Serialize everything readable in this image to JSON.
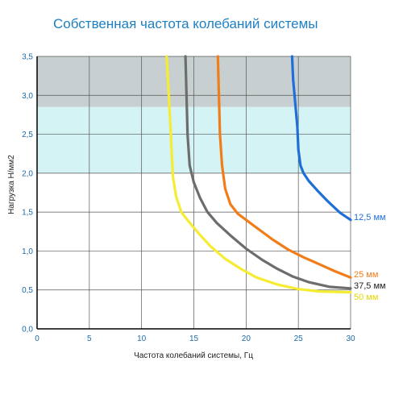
{
  "chart_data": {
    "type": "line",
    "title": "Собственная частота колебаний системы",
    "xlabel": "Частота колебаний системы, Гц",
    "ylabel": "Нагрузка Н/мм2",
    "xlim": [
      0,
      30
    ],
    "ylim": [
      0,
      3.5
    ],
    "x_ticks": [
      "0",
      "5",
      "10",
      "15",
      "20",
      "25",
      "30"
    ],
    "y_ticks": [
      "0,0",
      "0,5",
      "1,0",
      "1,5",
      "2,0",
      "2,5",
      "3,0",
      "3,5"
    ],
    "grid": true,
    "bands": [
      {
        "from": 2.85,
        "to": 3.5,
        "color": "#c8cfd1"
      },
      {
        "from": 2.0,
        "to": 2.85,
        "color": "#d4f3f4"
      }
    ],
    "series": [
      {
        "name": "12,5 мм",
        "color": "#1f6fd6",
        "x": [
          24.4,
          24.5,
          24.7,
          24.9,
          25.0,
          25.2,
          25.5,
          26.0,
          26.8,
          27.8,
          29.0,
          30.0
        ],
        "y": [
          3.5,
          3.2,
          2.9,
          2.6,
          2.3,
          2.1,
          2.0,
          1.9,
          1.78,
          1.64,
          1.49,
          1.4
        ]
      },
      {
        "name": "25 мм",
        "color": "#f07d1a",
        "x": [
          17.3,
          17.4,
          17.5,
          17.7,
          18.0,
          18.5,
          19.2,
          20.0,
          21.0,
          22.5,
          24.0,
          25.5,
          27.0,
          28.5,
          30.0
        ],
        "y": [
          3.5,
          3.0,
          2.5,
          2.1,
          1.8,
          1.6,
          1.48,
          1.4,
          1.3,
          1.15,
          1.02,
          0.92,
          0.83,
          0.74,
          0.66
        ]
      },
      {
        "name": "37,5 мм",
        "color": "#6d6d6d",
        "x": [
          14.2,
          14.3,
          14.4,
          14.6,
          15.0,
          15.6,
          16.3,
          17.2,
          18.5,
          20.0,
          21.5,
          23.0,
          24.5,
          26.0,
          28.0,
          30.0
        ],
        "y": [
          3.5,
          3.0,
          2.5,
          2.1,
          1.88,
          1.68,
          1.5,
          1.36,
          1.2,
          1.03,
          0.89,
          0.77,
          0.67,
          0.6,
          0.54,
          0.52
        ]
      },
      {
        "name": "50 мм",
        "color": "#f5ec33",
        "x": [
          12.4,
          12.6,
          12.8,
          12.9,
          13.0,
          13.3,
          13.8,
          14.5,
          15.5,
          16.6,
          18.0,
          19.5,
          21.0,
          23.0,
          25.0,
          27.0,
          30.0
        ],
        "y": [
          3.5,
          3.0,
          2.5,
          2.2,
          1.95,
          1.7,
          1.5,
          1.38,
          1.22,
          1.06,
          0.9,
          0.77,
          0.66,
          0.57,
          0.51,
          0.48,
          0.47
        ]
      }
    ]
  }
}
